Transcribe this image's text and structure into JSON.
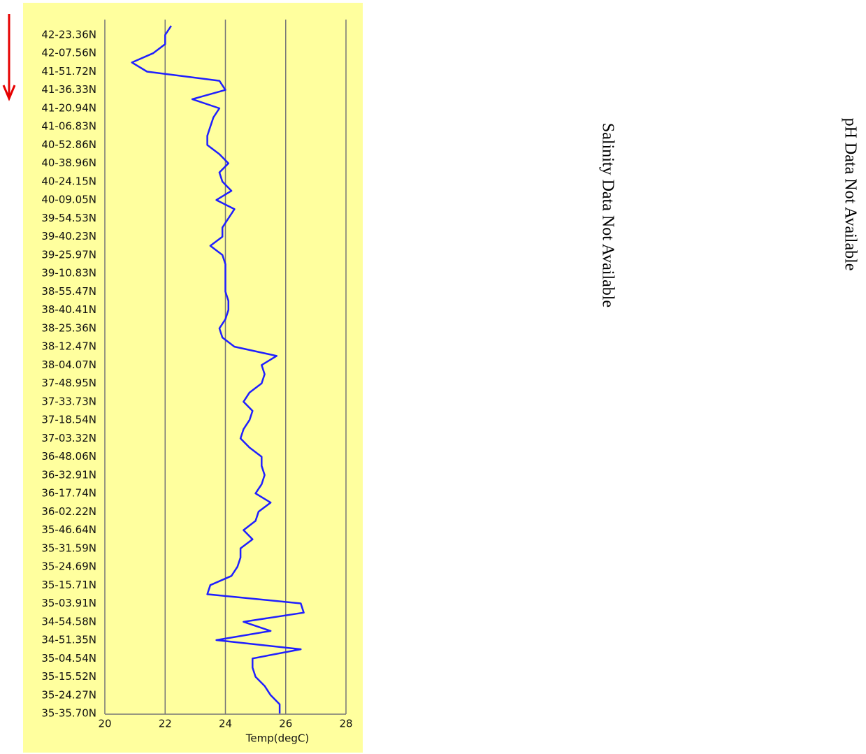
{
  "chart_data": {
    "type": "line",
    "orientation": "vertical",
    "x_label": "Temp(degC)",
    "xlim": [
      20,
      28
    ],
    "xticks": [
      20,
      22,
      24,
      26,
      28
    ],
    "grid": true,
    "color": "#1f1fff",
    "categories": [
      null,
      "42-23.36N",
      null,
      "42-07.56N",
      null,
      "41-51.72N",
      null,
      "41-36.33N",
      null,
      "41-20.94N",
      null,
      "41-06.83N",
      null,
      "40-52.86N",
      null,
      "40-38.96N",
      null,
      "40-24.15N",
      null,
      "40-09.05N",
      null,
      "39-54.53N",
      null,
      "39-40.23N",
      null,
      "39-25.97N",
      null,
      "39-10.83N",
      null,
      "38-55.47N",
      null,
      "38-40.41N",
      null,
      "38-25.36N",
      null,
      "38-12.47N",
      null,
      "38-04.07N",
      null,
      "37-48.95N",
      null,
      "37-33.73N",
      null,
      "37-18.54N",
      null,
      "37-03.32N",
      null,
      "36-48.06N",
      null,
      "36-32.91N",
      null,
      "36-17.74N",
      null,
      "36-02.22N",
      null,
      "35-46.64N",
      null,
      "35-31.59N",
      null,
      "35-24.69N",
      null,
      "35-15.71N",
      null,
      "35-03.91N",
      null,
      "34-54.58N",
      null,
      "34-51.35N",
      null,
      "35-04.54N",
      null,
      "35-15.52N",
      null,
      "35-24.27N",
      null,
      "35-35.70N"
    ],
    "values": [
      22.2,
      22.0,
      22.0,
      21.6,
      20.9,
      21.4,
      23.8,
      24.0,
      22.9,
      23.8,
      23.6,
      23.5,
      23.4,
      23.4,
      23.8,
      24.1,
      23.8,
      23.9,
      24.2,
      23.7,
      24.3,
      24.1,
      23.9,
      23.9,
      23.5,
      23.9,
      24.0,
      24.0,
      24.0,
      24.0,
      24.1,
      24.1,
      24.0,
      23.8,
      23.9,
      24.3,
      25.7,
      25.2,
      25.3,
      25.2,
      24.8,
      24.6,
      24.9,
      24.8,
      24.6,
      24.5,
      24.8,
      25.2,
      25.2,
      25.3,
      25.2,
      25.0,
      25.5,
      25.1,
      25.0,
      24.6,
      24.9,
      24.5,
      24.5,
      24.4,
      24.2,
      23.5,
      23.4,
      26.5,
      26.6,
      24.6,
      25.5,
      23.7,
      26.5,
      24.9,
      24.9,
      25.0,
      25.3,
      25.5,
      25.8,
      25.8
    ]
  },
  "side_panels": [
    "Salinity Data Not Available",
    "pH Data Not Available"
  ]
}
